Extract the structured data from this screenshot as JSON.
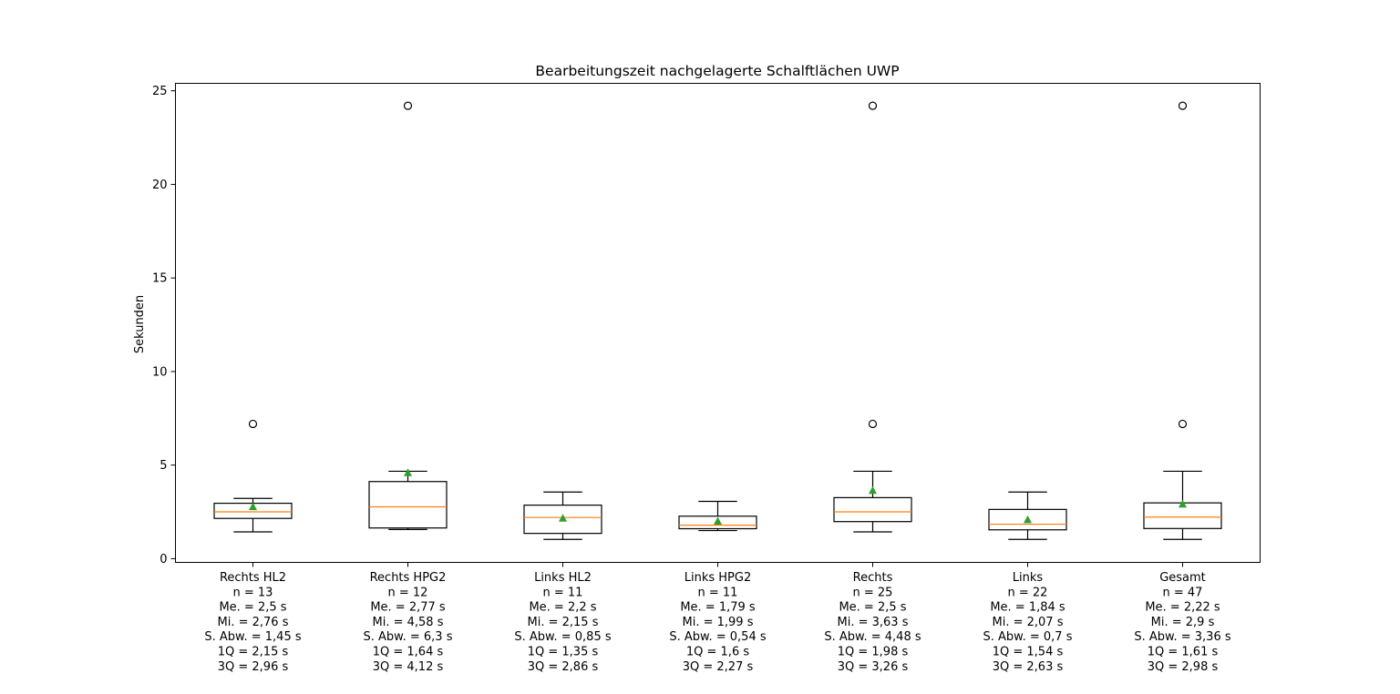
{
  "chart_data": {
    "type": "boxplot",
    "title": "Bearbeitungszeit nachgelagerte Schalftlächen UWP",
    "xlabel": "",
    "ylabel": "Sekunden",
    "ylim": [
      -0.2,
      25.4
    ],
    "yticks": [
      0,
      5,
      10,
      15,
      20,
      25
    ],
    "grid": false,
    "colors": {
      "box": "#000000",
      "median": "#ff7f0e",
      "mean": "#2ca02c",
      "flier": "#000000"
    },
    "categories": [
      {
        "label_lines": [
          "Rechts HL2",
          "n = 13",
          "Me. = 2,5 s",
          "Mi. = 2,76 s",
          "S. Abw. = 1,45 s",
          "1Q = 2,15 s",
          "3Q = 2,96 s"
        ],
        "q1": 2.15,
        "median": 2.5,
        "q3": 2.96,
        "mean": 2.76,
        "whisker_low": 1.43,
        "whisker_high": 3.22,
        "fliers": [
          7.2
        ]
      },
      {
        "label_lines": [
          "Rechts HPG2",
          "n = 12",
          "Me. = 2,77 s",
          "Mi. = 4,58 s",
          "S. Abw. = 6,3 s",
          "1Q = 1,64 s",
          "3Q = 4,12 s"
        ],
        "q1": 1.64,
        "median": 2.77,
        "q3": 4.12,
        "mean": 4.58,
        "whisker_low": 1.56,
        "whisker_high": 4.67,
        "fliers": [
          24.2
        ]
      },
      {
        "label_lines": [
          "Links HL2",
          "n = 11",
          "Me. = 2,2 s",
          "Mi. = 2,15 s",
          "S. Abw. = 0,85 s",
          "1Q = 1,35 s",
          "3Q = 2,86 s"
        ],
        "q1": 1.35,
        "median": 2.2,
        "q3": 2.86,
        "mean": 2.15,
        "whisker_low": 1.03,
        "whisker_high": 3.56,
        "fliers": []
      },
      {
        "label_lines": [
          "Links HPG2",
          "n = 11",
          "Me. = 1,79 s",
          "Mi. = 1,99 s",
          "S. Abw. = 0,54 s",
          "1Q = 1,6 s",
          "3Q = 2,27 s"
        ],
        "q1": 1.6,
        "median": 1.79,
        "q3": 2.27,
        "mean": 1.99,
        "whisker_low": 1.5,
        "whisker_high": 3.06,
        "fliers": []
      },
      {
        "label_lines": [
          "Rechts",
          "n = 25",
          "Me. = 2,5 s",
          "Mi. = 3,63 s",
          "S. Abw. = 4,48 s",
          "1Q = 1,98 s",
          "3Q = 3,26 s"
        ],
        "q1": 1.98,
        "median": 2.5,
        "q3": 3.26,
        "mean": 3.63,
        "whisker_low": 1.43,
        "whisker_high": 4.67,
        "fliers": [
          7.2,
          24.2
        ]
      },
      {
        "label_lines": [
          "Links",
          "n = 22",
          "Me. = 1,84 s",
          "Mi. = 2,07 s",
          "S. Abw. = 0,7 s",
          "1Q = 1,54 s",
          "3Q = 2,63 s"
        ],
        "q1": 1.54,
        "median": 1.84,
        "q3": 2.63,
        "mean": 2.07,
        "whisker_low": 1.03,
        "whisker_high": 3.56,
        "fliers": []
      },
      {
        "label_lines": [
          "Gesamt",
          "n = 47",
          "Me. = 2,22 s",
          "Mi. = 2,9 s",
          "S. Abw. = 3,36 s",
          "1Q = 1,61 s",
          "3Q = 2,98 s"
        ],
        "q1": 1.61,
        "median": 2.22,
        "q3": 2.98,
        "mean": 2.9,
        "whisker_low": 1.03,
        "whisker_high": 4.67,
        "fliers": [
          7.2,
          24.2
        ]
      }
    ]
  }
}
